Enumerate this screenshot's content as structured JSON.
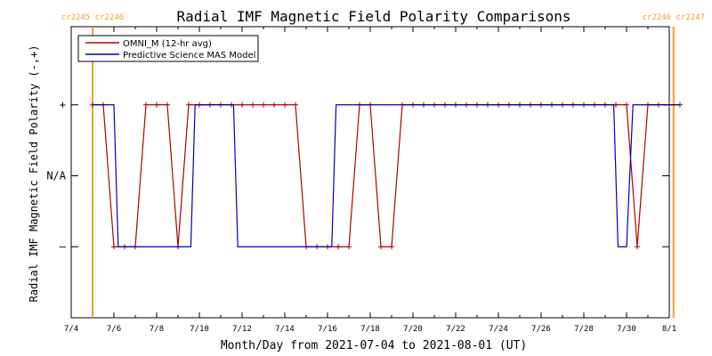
{
  "chart_data": {
    "type": "line",
    "title": "Radial IMF Magnetic Field Polarity Comparisons",
    "xlabel": "Month/Day from 2021-07-04 to 2021-08-01 (UT)",
    "ylabel": "Radial IMF Magnetic Field Polarity (-,+)",
    "x_range_days": [
      0,
      28
    ],
    "x_ticks": [
      "7/4",
      "7/6",
      "7/8",
      "7/10",
      "7/12",
      "7/14",
      "7/16",
      "7/18",
      "7/20",
      "7/22",
      "7/24",
      "7/26",
      "7/28",
      "7/30",
      "8/1"
    ],
    "y_levels": [
      {
        "label": "+",
        "value": 1
      },
      {
        "label": "N/A",
        "value": 0
      },
      {
        "label": "–",
        "value": -1
      }
    ],
    "y_range": [
      -2,
      2.1
    ],
    "carrington_markers": [
      {
        "day": 1.0,
        "label": "cr2245 cr2246"
      },
      {
        "day": 28.2,
        "label": "cr2246 cr2247"
      }
    ],
    "marker_color": "#f0a030",
    "legend_position": "top-left",
    "series": [
      {
        "name": "OMNI_M (12-hr avg)",
        "color": "#b00000",
        "marker": "+",
        "x": [
          1.0,
          1.5,
          2.0,
          2.5,
          3.0,
          3.5,
          4.0,
          4.5,
          5.0,
          5.5,
          6.0,
          6.5,
          7.0,
          7.5,
          8.0,
          8.5,
          9.0,
          9.5,
          10.0,
          10.5,
          11.0,
          11.5,
          12.0,
          12.5,
          13.0,
          13.5,
          14.0,
          14.5,
          15.0,
          15.5,
          16.0,
          16.5,
          17.0,
          17.5,
          18.0,
          18.5,
          19.0,
          19.5,
          20.0,
          20.5,
          21.0,
          21.5,
          22.0,
          22.5,
          23.0,
          23.5,
          24.0,
          24.5,
          25.0,
          25.5,
          26.0,
          26.5,
          27.0,
          27.5,
          28.0,
          28.5
        ],
        "y": [
          1,
          1,
          -1,
          -1,
          -1,
          1,
          1,
          1,
          -1,
          1,
          1,
          1,
          1,
          1,
          1,
          1,
          1,
          1,
          1,
          1,
          -1,
          -1,
          -1,
          -1,
          -1,
          1,
          1,
          -1,
          -1,
          1,
          1,
          1,
          1,
          1,
          1,
          1,
          1,
          1,
          1,
          1,
          1,
          1,
          1,
          1,
          1,
          1,
          1,
          1,
          1,
          1,
          1,
          -1,
          1,
          1,
          1,
          1
        ]
      },
      {
        "name": "Predictive Science MAS Model",
        "color": "#0000c0",
        "x": [
          1.0,
          2.0,
          2.2,
          5.6,
          5.8,
          7.6,
          7.8,
          12.2,
          12.4,
          15.6,
          15.8,
          25.4,
          25.6,
          26.0,
          26.3,
          26.6,
          28.5
        ],
        "y": [
          1,
          1,
          -1,
          -1,
          1,
          1,
          -1,
          -1,
          1,
          1,
          1,
          1,
          -1,
          -1,
          1,
          1,
          1
        ]
      }
    ]
  }
}
